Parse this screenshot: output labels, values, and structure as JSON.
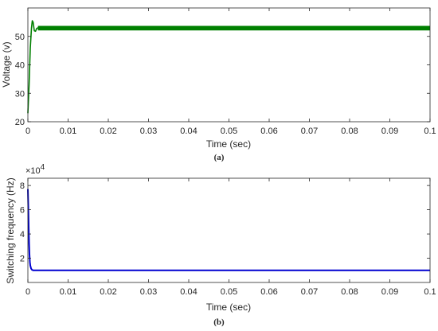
{
  "chart_data": [
    {
      "type": "line",
      "caption": "(a)",
      "xlabel": "Time (sec)",
      "ylabel": "Voltage (v)",
      "xlim": [
        0,
        0.1
      ],
      "ylim": [
        20,
        60
      ],
      "xticks": [
        0,
        0.01,
        0.02,
        0.03,
        0.04,
        0.05,
        0.06,
        0.07,
        0.08,
        0.09,
        0.1
      ],
      "xtick_labels": [
        "0",
        "0.01",
        "0.02",
        "0.03",
        "0.04",
        "0.05",
        "0.06",
        "0.07",
        "0.08",
        "0.09",
        "0.1"
      ],
      "yticks": [
        20,
        30,
        40,
        50
      ],
      "ytick_labels": [
        "20",
        "30",
        "40",
        "50"
      ],
      "grid": false,
      "series": [
        {
          "color": "#008000",
          "ripple": [
            52.1,
            53.7
          ],
          "x": [
            0,
            0.0003,
            0.0006,
            0.0009,
            0.0011,
            0.0013,
            0.0016,
            0.0019,
            0.0022,
            0.0025,
            0.004,
            0.01,
            0.02,
            0.03,
            0.04,
            0.05,
            0.06,
            0.07,
            0.08,
            0.09,
            0.1
          ],
          "values": [
            23,
            33,
            46,
            53,
            55.5,
            55,
            52,
            51.8,
            52.8,
            53,
            53,
            53,
            53,
            53,
            53,
            53,
            53,
            53,
            53,
            53,
            53
          ]
        }
      ]
    },
    {
      "type": "line",
      "caption": "(b)",
      "xlabel": "Time (sec)",
      "ylabel": "Switching frequency (Hz)",
      "y_exponent_base": "×10",
      "y_exponent_power": "4",
      "xlim": [
        0,
        0.1
      ],
      "ylim": [
        0,
        8.6
      ],
      "xticks": [
        0,
        0.01,
        0.02,
        0.03,
        0.04,
        0.05,
        0.06,
        0.07,
        0.08,
        0.09,
        0.1
      ],
      "xtick_labels": [
        "0",
        "0.01",
        "0.02",
        "0.03",
        "0.04",
        "0.05",
        "0.06",
        "0.07",
        "0.08",
        "0.09",
        "0.1"
      ],
      "yticks": [
        2,
        4,
        6,
        8
      ],
      "ytick_labels": [
        "2",
        "4",
        "6",
        "8"
      ],
      "grid": false,
      "series": [
        {
          "color": "#0000d0",
          "x": [
            0,
            0.0001,
            0.0002,
            0.0003,
            0.0004,
            0.0005,
            0.0006,
            0.0008,
            0.001,
            0.0013,
            0.0016,
            0.002,
            0.005,
            0.01,
            0.02,
            0.03,
            0.04,
            0.05,
            0.06,
            0.07,
            0.08,
            0.09,
            0.1
          ],
          "values": [
            7.7,
            6.3,
            4.6,
            3.2,
            2.3,
            1.7,
            1.4,
            1.15,
            1.05,
            1.0,
            1.0,
            1.0,
            1.0,
            1.0,
            1.0,
            1.0,
            1.0,
            1.0,
            1.0,
            1.0,
            1.0,
            1.0,
            1.0
          ]
        }
      ]
    }
  ]
}
